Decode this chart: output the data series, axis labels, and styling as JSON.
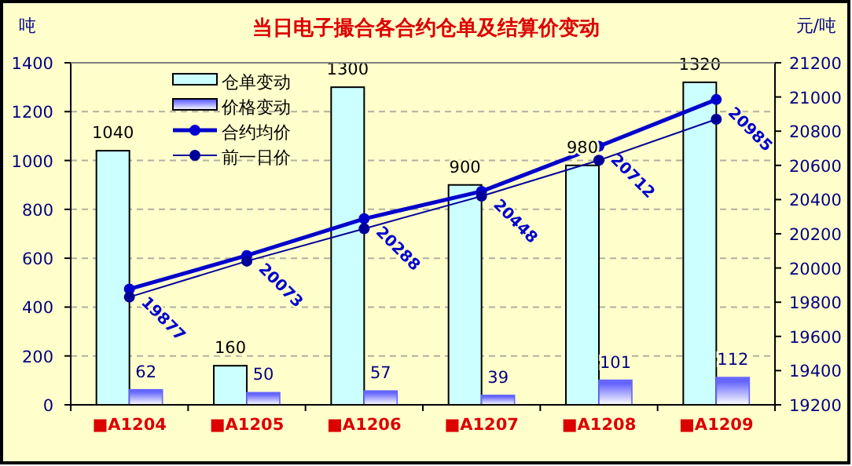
{
  "chart_data": {
    "type": "bar",
    "title": "当日电子撮合各合约仓单及结算价变动",
    "ylabel": "吨",
    "y2label": "元/吨",
    "categories": [
      "■A1204",
      "■A1205",
      "■A1206",
      "■A1207",
      "■A1208",
      "■A1209"
    ],
    "series": [
      {
        "name": "仓单变动",
        "color": "#ccffff",
        "values": [
          1040,
          160,
          1300,
          900,
          980,
          1320
        ],
        "value_labels": [
          "1040",
          "160",
          "1300",
          "900",
          "980",
          "1320"
        ]
      },
      {
        "name": "价格变动",
        "color": "#6666ff",
        "values": [
          62,
          50,
          57,
          39,
          101,
          112
        ],
        "value_labels": [
          "62",
          "50",
          "57",
          "39",
          "101",
          "112"
        ]
      },
      {
        "name": "合约均价",
        "type": "line",
        "axis": "y2",
        "color": "#0000cc",
        "values": [
          19877,
          20073,
          20288,
          20448,
          20712,
          20985
        ],
        "value_labels": [
          "19877",
          "20073",
          "20288",
          "20448",
          "20712",
          "20985"
        ]
      },
      {
        "name": "前一日价",
        "type": "line",
        "axis": "y2",
        "color": "#000099",
        "values": [
          19830,
          20040,
          20230,
          20420,
          20630,
          20870
        ]
      }
    ],
    "ylim": [
      0,
      1400
    ],
    "yticks": [
      0,
      200,
      400,
      600,
      800,
      1000,
      1200,
      1400
    ],
    "y2lim": [
      19200,
      21200
    ],
    "y2ticks": [
      19200,
      19400,
      19600,
      19800,
      20000,
      20200,
      20400,
      20600,
      20800,
      21000,
      21200
    ],
    "grid": "y",
    "legend": "top left",
    "marker": "circle"
  }
}
